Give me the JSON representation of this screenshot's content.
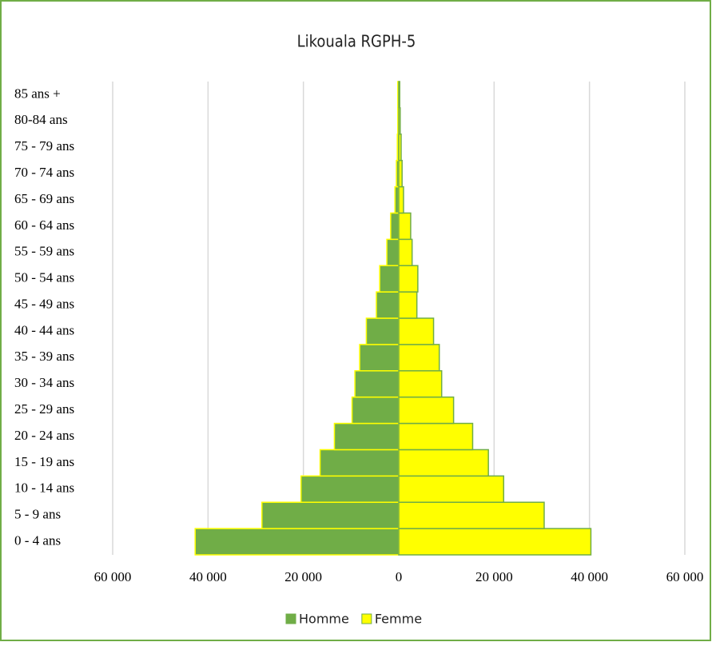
{
  "chart_data": {
    "type": "pyramid",
    "title": "Likouala RGPH-5",
    "categories": [
      "0 - 4 ans",
      "5 - 9 ans",
      "10 - 14 ans",
      "15 - 19 ans",
      "20 - 24 ans",
      "25 - 29 ans",
      "30 - 34 ans",
      "35 - 39 ans",
      "40 - 44 ans",
      "45 - 49 ans",
      "50 - 54 ans",
      "55 - 59 ans",
      "60 - 64 ans",
      "65 - 69 ans",
      "70 - 74 ans",
      "75 - 79 ans",
      "80-84 ans",
      "85 ans +"
    ],
    "series": [
      {
        "name": "Homme",
        "color": "#70ad47",
        "values": [
          -42700,
          -28700,
          -20500,
          -16500,
          -13500,
          -9800,
          -9200,
          -8200,
          -6800,
          -4700,
          -4000,
          -2500,
          -1700,
          -800,
          -500,
          -300,
          -200,
          -200
        ]
      },
      {
        "name": "Femme",
        "color": "#ffff00",
        "values": [
          40300,
          30500,
          22000,
          18800,
          15500,
          11500,
          9000,
          8500,
          7300,
          3800,
          4000,
          2800,
          2500,
          1000,
          700,
          500,
          300,
          200
        ]
      }
    ],
    "xlim": [
      -60000,
      60000
    ],
    "xticks": [
      {
        "value": -60000,
        "label": "60 000"
      },
      {
        "value": -40000,
        "label": "40 000"
      },
      {
        "value": -20000,
        "label": "20 000"
      },
      0,
      {
        "value": 20000,
        "label": "20 000"
      },
      {
        "value": 40000,
        "label": "40 000"
      },
      {
        "value": 60000,
        "label": "60 000"
      }
    ],
    "grid": true,
    "legend": "bottom"
  }
}
